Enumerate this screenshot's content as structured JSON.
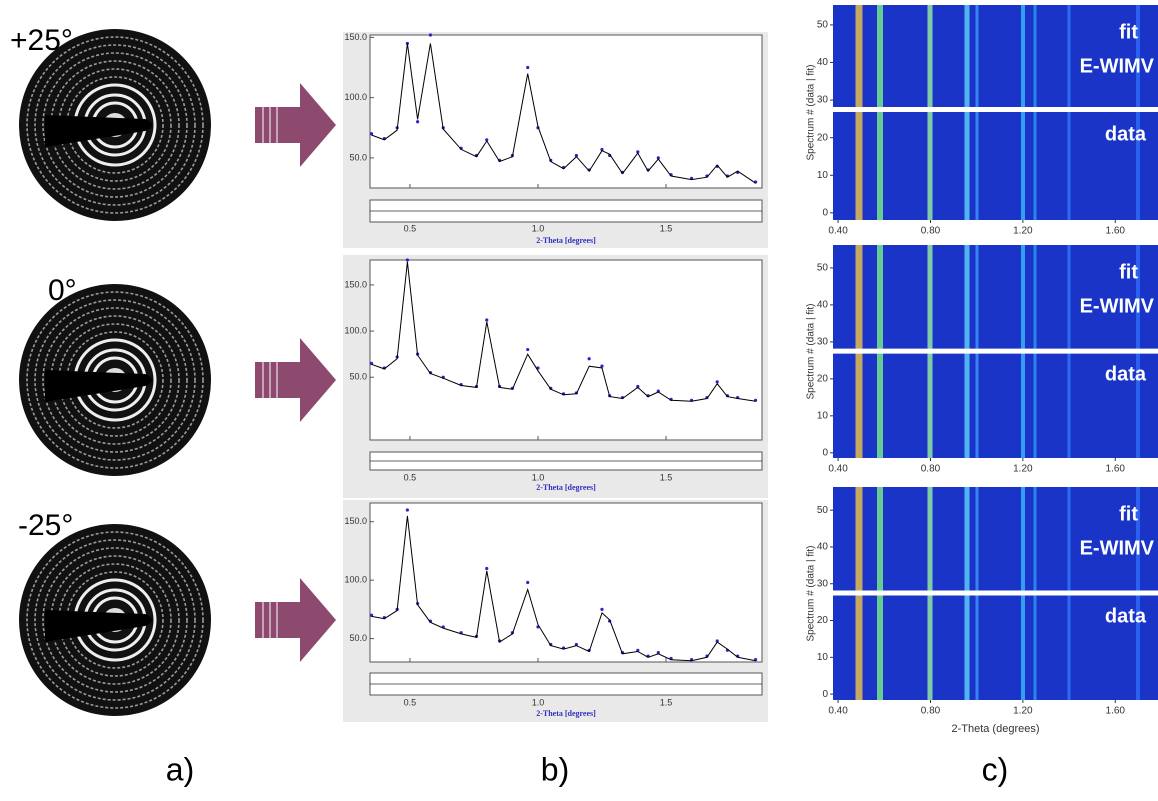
{
  "panel_labels": [
    "a)",
    "b)",
    "c)"
  ],
  "tilt_labels": [
    "+25°",
    "0°",
    "-25°"
  ],
  "chart_data": [
    {
      "type": "line",
      "x": [
        0.35,
        0.4,
        0.45,
        0.49,
        0.53,
        0.58,
        0.63,
        0.7,
        0.76,
        0.8,
        0.85,
        0.9,
        0.96,
        1.0,
        1.05,
        1.1,
        1.15,
        1.2,
        1.25,
        1.28,
        1.33,
        1.39,
        1.43,
        1.47,
        1.52,
        1.6,
        1.66,
        1.7,
        1.74,
        1.78,
        1.85
      ],
      "series": [
        {
          "color": "#2626d0",
          "style": "points",
          "values": [
            70,
            66,
            75,
            145,
            80,
            152,
            75,
            58,
            52,
            65,
            48,
            52,
            125,
            75,
            48,
            42,
            52,
            40,
            57,
            52,
            38,
            55,
            40,
            50,
            36,
            33,
            35,
            43,
            35,
            38,
            30
          ]
        },
        {
          "color": "#000000",
          "style": "line",
          "values": [
            69,
            65,
            73,
            145,
            82,
            145,
            74,
            57,
            51,
            64,
            47,
            51,
            120,
            76,
            47,
            41,
            51,
            39,
            56,
            53,
            37,
            54,
            39,
            49,
            35,
            32,
            34,
            44,
            34,
            39,
            29
          ]
        }
      ],
      "xlim": [
        0.344,
        1.875
      ],
      "ylim": [
        25,
        152
      ],
      "xticks": [
        0.5,
        {
          "value": 1,
          "label": "1.0"
        },
        1.5
      ],
      "yticks": [
        {
          "value": 50,
          "label": "50.0"
        },
        {
          "value": 100,
          "label": "100.0"
        },
        {
          "value": 150,
          "label": "150.0"
        }
      ],
      "xlabel": "2-Theta [degrees]"
    },
    {
      "type": "line",
      "x": [
        0.35,
        0.4,
        0.45,
        0.49,
        0.53,
        0.58,
        0.63,
        0.7,
        0.76,
        0.8,
        0.85,
        0.9,
        0.96,
        1.0,
        1.05,
        1.1,
        1.15,
        1.2,
        1.25,
        1.28,
        1.33,
        1.39,
        1.43,
        1.47,
        1.52,
        1.6,
        1.66,
        1.7,
        1.74,
        1.78,
        1.85
      ],
      "series": [
        {
          "color": "#2626d0",
          "style": "points",
          "values": [
            65,
            60,
            72,
            177,
            75,
            55,
            50,
            42,
            40,
            112,
            40,
            38,
            80,
            60,
            38,
            32,
            33,
            70,
            62,
            30,
            28,
            40,
            30,
            35,
            26,
            25,
            28,
            45,
            30,
            28,
            25
          ]
        },
        {
          "color": "#000000",
          "style": "line",
          "values": [
            64,
            59,
            70,
            175,
            74,
            54,
            49,
            41,
            39,
            110,
            39,
            37,
            75,
            57,
            37,
            31,
            32,
            62,
            60,
            29,
            27,
            39,
            29,
            34,
            25,
            24,
            27,
            43,
            29,
            27,
            24
          ]
        }
      ],
      "xlim": [
        0.344,
        1.875
      ],
      "ylim": [
        -18,
        177
      ],
      "xticks": [
        0.5,
        {
          "value": 1,
          "label": "1.0"
        },
        1.5
      ],
      "yticks": [
        {
          "value": 50,
          "label": "50.0"
        },
        {
          "value": 100,
          "label": "100.0"
        },
        {
          "value": 150,
          "label": "150.0"
        }
      ],
      "xlabel": "2-Theta [degrees]"
    },
    {
      "type": "line",
      "x": [
        0.35,
        0.4,
        0.45,
        0.49,
        0.53,
        0.58,
        0.63,
        0.7,
        0.76,
        0.8,
        0.85,
        0.9,
        0.96,
        1.0,
        1.05,
        1.1,
        1.15,
        1.2,
        1.25,
        1.28,
        1.33,
        1.39,
        1.43,
        1.47,
        1.52,
        1.6,
        1.66,
        1.7,
        1.74,
        1.78,
        1.85
      ],
      "series": [
        {
          "color": "#2626d0",
          "style": "points",
          "values": [
            70,
            68,
            75,
            160,
            80,
            65,
            60,
            55,
            52,
            110,
            48,
            55,
            98,
            60,
            45,
            42,
            45,
            40,
            75,
            65,
            38,
            40,
            35,
            38,
            33,
            32,
            35,
            48,
            40,
            35,
            32
          ]
        },
        {
          "color": "#000000",
          "style": "line",
          "values": [
            69,
            67,
            74,
            155,
            79,
            64,
            59,
            54,
            51,
            108,
            47,
            54,
            92,
            62,
            44,
            41,
            44,
            39,
            72,
            66,
            37,
            39,
            34,
            37,
            32,
            31,
            34,
            47,
            41,
            34,
            31
          ]
        }
      ],
      "xlim": [
        0.344,
        1.875
      ],
      "ylim": [
        30,
        166
      ],
      "xticks": [
        0.5,
        {
          "value": 1,
          "label": "1.0"
        },
        1.5
      ],
      "yticks": [
        {
          "value": 50,
          "label": "50.0"
        },
        {
          "value": 100,
          "label": "100.0"
        },
        {
          "value": 150,
          "label": "150.0"
        }
      ],
      "xlabel": "2-Theta [degrees]"
    },
    {
      "type": "heatmap",
      "xlim": [
        0.378,
        1.785
      ],
      "ylim": [
        -1.9,
        55.3
      ],
      "xticks": [
        {
          "value": 0.4,
          "label": "0.40"
        },
        {
          "value": 0.8,
          "label": "0.80"
        },
        {
          "value": 1.2,
          "label": "1.20"
        },
        {
          "value": 1.6,
          "label": "1.60"
        }
      ],
      "yticks": [
        0,
        10,
        20,
        30,
        40,
        50
      ],
      "divider": 27.5,
      "ylabel": "Spectrum # (data | fit)",
      "annotations": [
        "fit",
        "E-WIMV",
        "data"
      ]
    },
    {
      "type": "heatmap",
      "xlim": [
        0.378,
        1.785
      ],
      "ylim": [
        -1.4,
        56.2
      ],
      "xticks": [
        {
          "value": 0.4,
          "label": "0.40"
        },
        {
          "value": 0.8,
          "label": "0.80"
        },
        {
          "value": 1.2,
          "label": "1.20"
        },
        {
          "value": 1.6,
          "label": "1.60"
        }
      ],
      "yticks": [
        0,
        10,
        20,
        30,
        40,
        50
      ],
      "divider": 27.5,
      "ylabel": "Spectrum # (data | fit)",
      "annotations": [
        "fit",
        "E-WIMV",
        "data"
      ]
    },
    {
      "type": "heatmap",
      "xlim": [
        0.378,
        1.785
      ],
      "ylim": [
        -1.6,
        56.3
      ],
      "xticks": [
        {
          "value": 0.4,
          "label": "0.40"
        },
        {
          "value": 0.8,
          "label": "0.80"
        },
        {
          "value": 1.2,
          "label": "1.20"
        },
        {
          "value": 1.6,
          "label": "1.60"
        }
      ],
      "yticks": [
        0,
        10,
        20,
        30,
        40,
        50
      ],
      "divider": 27.5,
      "ylabel": "Spectrum # (data | fit)",
      "xlabel": "2-Theta (degrees)",
      "annotations": [
        "fit",
        "E-WIMV",
        "data"
      ]
    }
  ]
}
